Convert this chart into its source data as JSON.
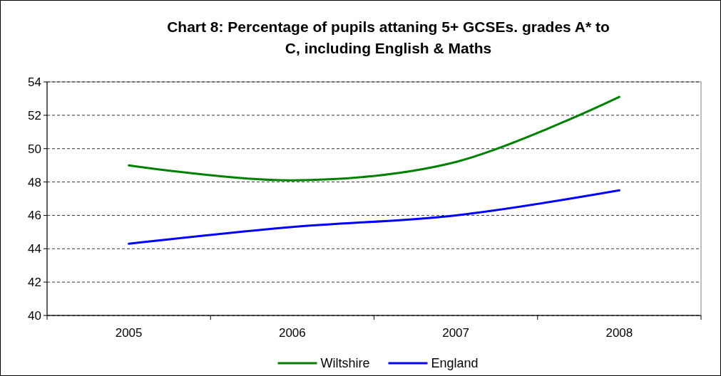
{
  "chart_data": {
    "type": "line",
    "title": "Chart 8: Percentage of pupils attaning 5+ GCSEs. grades A* to C, including English & Maths",
    "categories": [
      "2005",
      "2006",
      "2007",
      "2008"
    ],
    "series": [
      {
        "name": "Wiltshire",
        "color": "#008000",
        "values": [
          49.0,
          48.1,
          49.2,
          53.1
        ]
      },
      {
        "name": "England",
        "color": "#0000ff",
        "values": [
          44.3,
          45.3,
          46.0,
          47.5
        ]
      }
    ],
    "ylim": [
      40,
      54
    ],
    "yticks": [
      40,
      42,
      44,
      46,
      48,
      50,
      52,
      54
    ],
    "grid": "y",
    "legend": "bottom",
    "line_style": "solid",
    "marker": "none"
  }
}
